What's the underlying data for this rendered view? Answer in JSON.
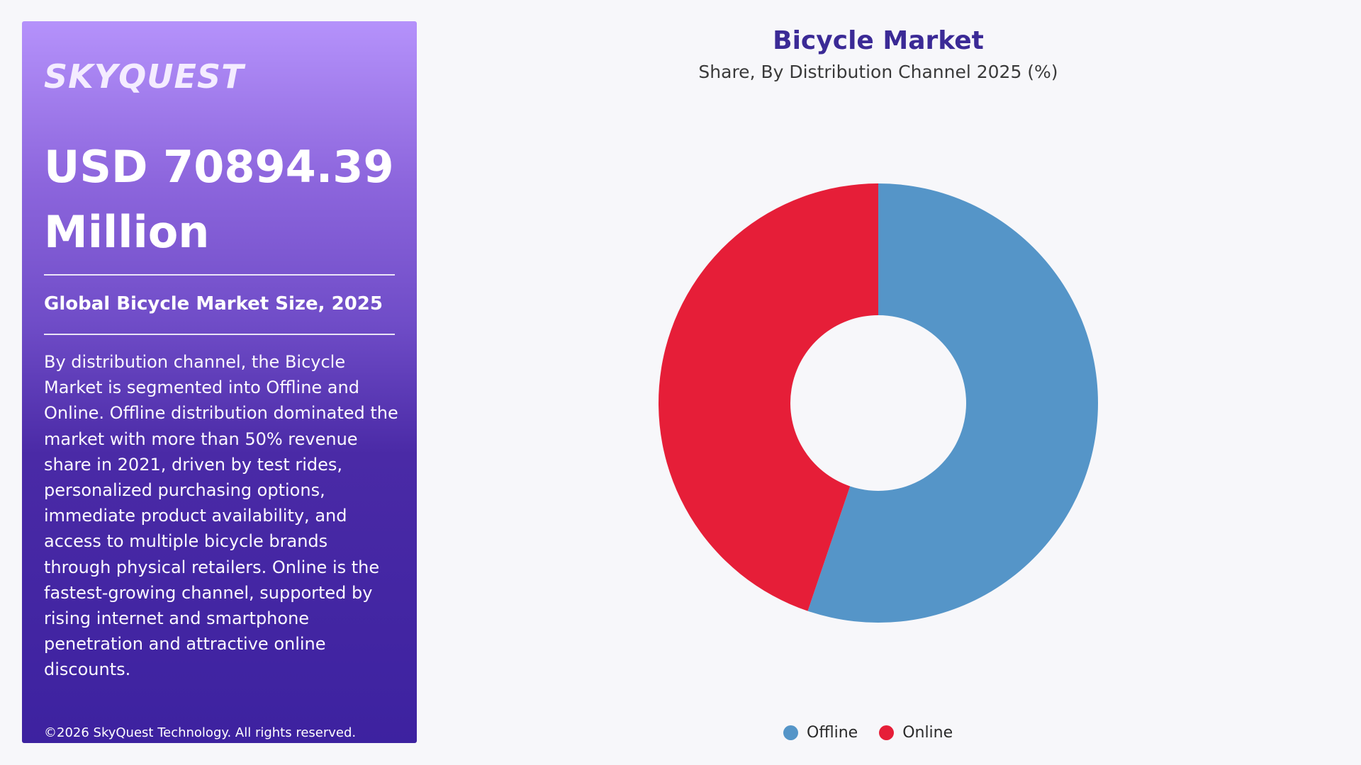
{
  "brand": {
    "logo_text": "SKYQUEST"
  },
  "panel": {
    "headline": "USD 70894.39 Million",
    "subheading": "Global Bicycle Market Size, 2025",
    "description": "By distribution channel, the Bicycle Market is segmented into Offline and Online. Offline distribution dominated the market with more than 50% revenue share in 2021, driven by test rides, personalized purchasing options, immediate product availability, and access to multiple bicycle brands through physical retailers. Online is the fastest-growing channel, supported by rising internet and smartphone penetration and attractive online discounts.",
    "copyright": "©2026 SkyQuest Technology. All rights reserved.",
    "gradient_colors": [
      "#b592fb",
      "#3d22a0"
    ]
  },
  "chart_data": {
    "type": "pie",
    "variant": "donut",
    "title": "Bicycle Market",
    "subtitle": "Share, By Distribution Channel 2025 (%)",
    "categories": [
      "Offline",
      "Online"
    ],
    "values": [
      55.2,
      44.8
    ],
    "colors": [
      "#5595c8",
      "#e61e38"
    ],
    "legend_position": "bottom-center",
    "data_labels": false
  }
}
